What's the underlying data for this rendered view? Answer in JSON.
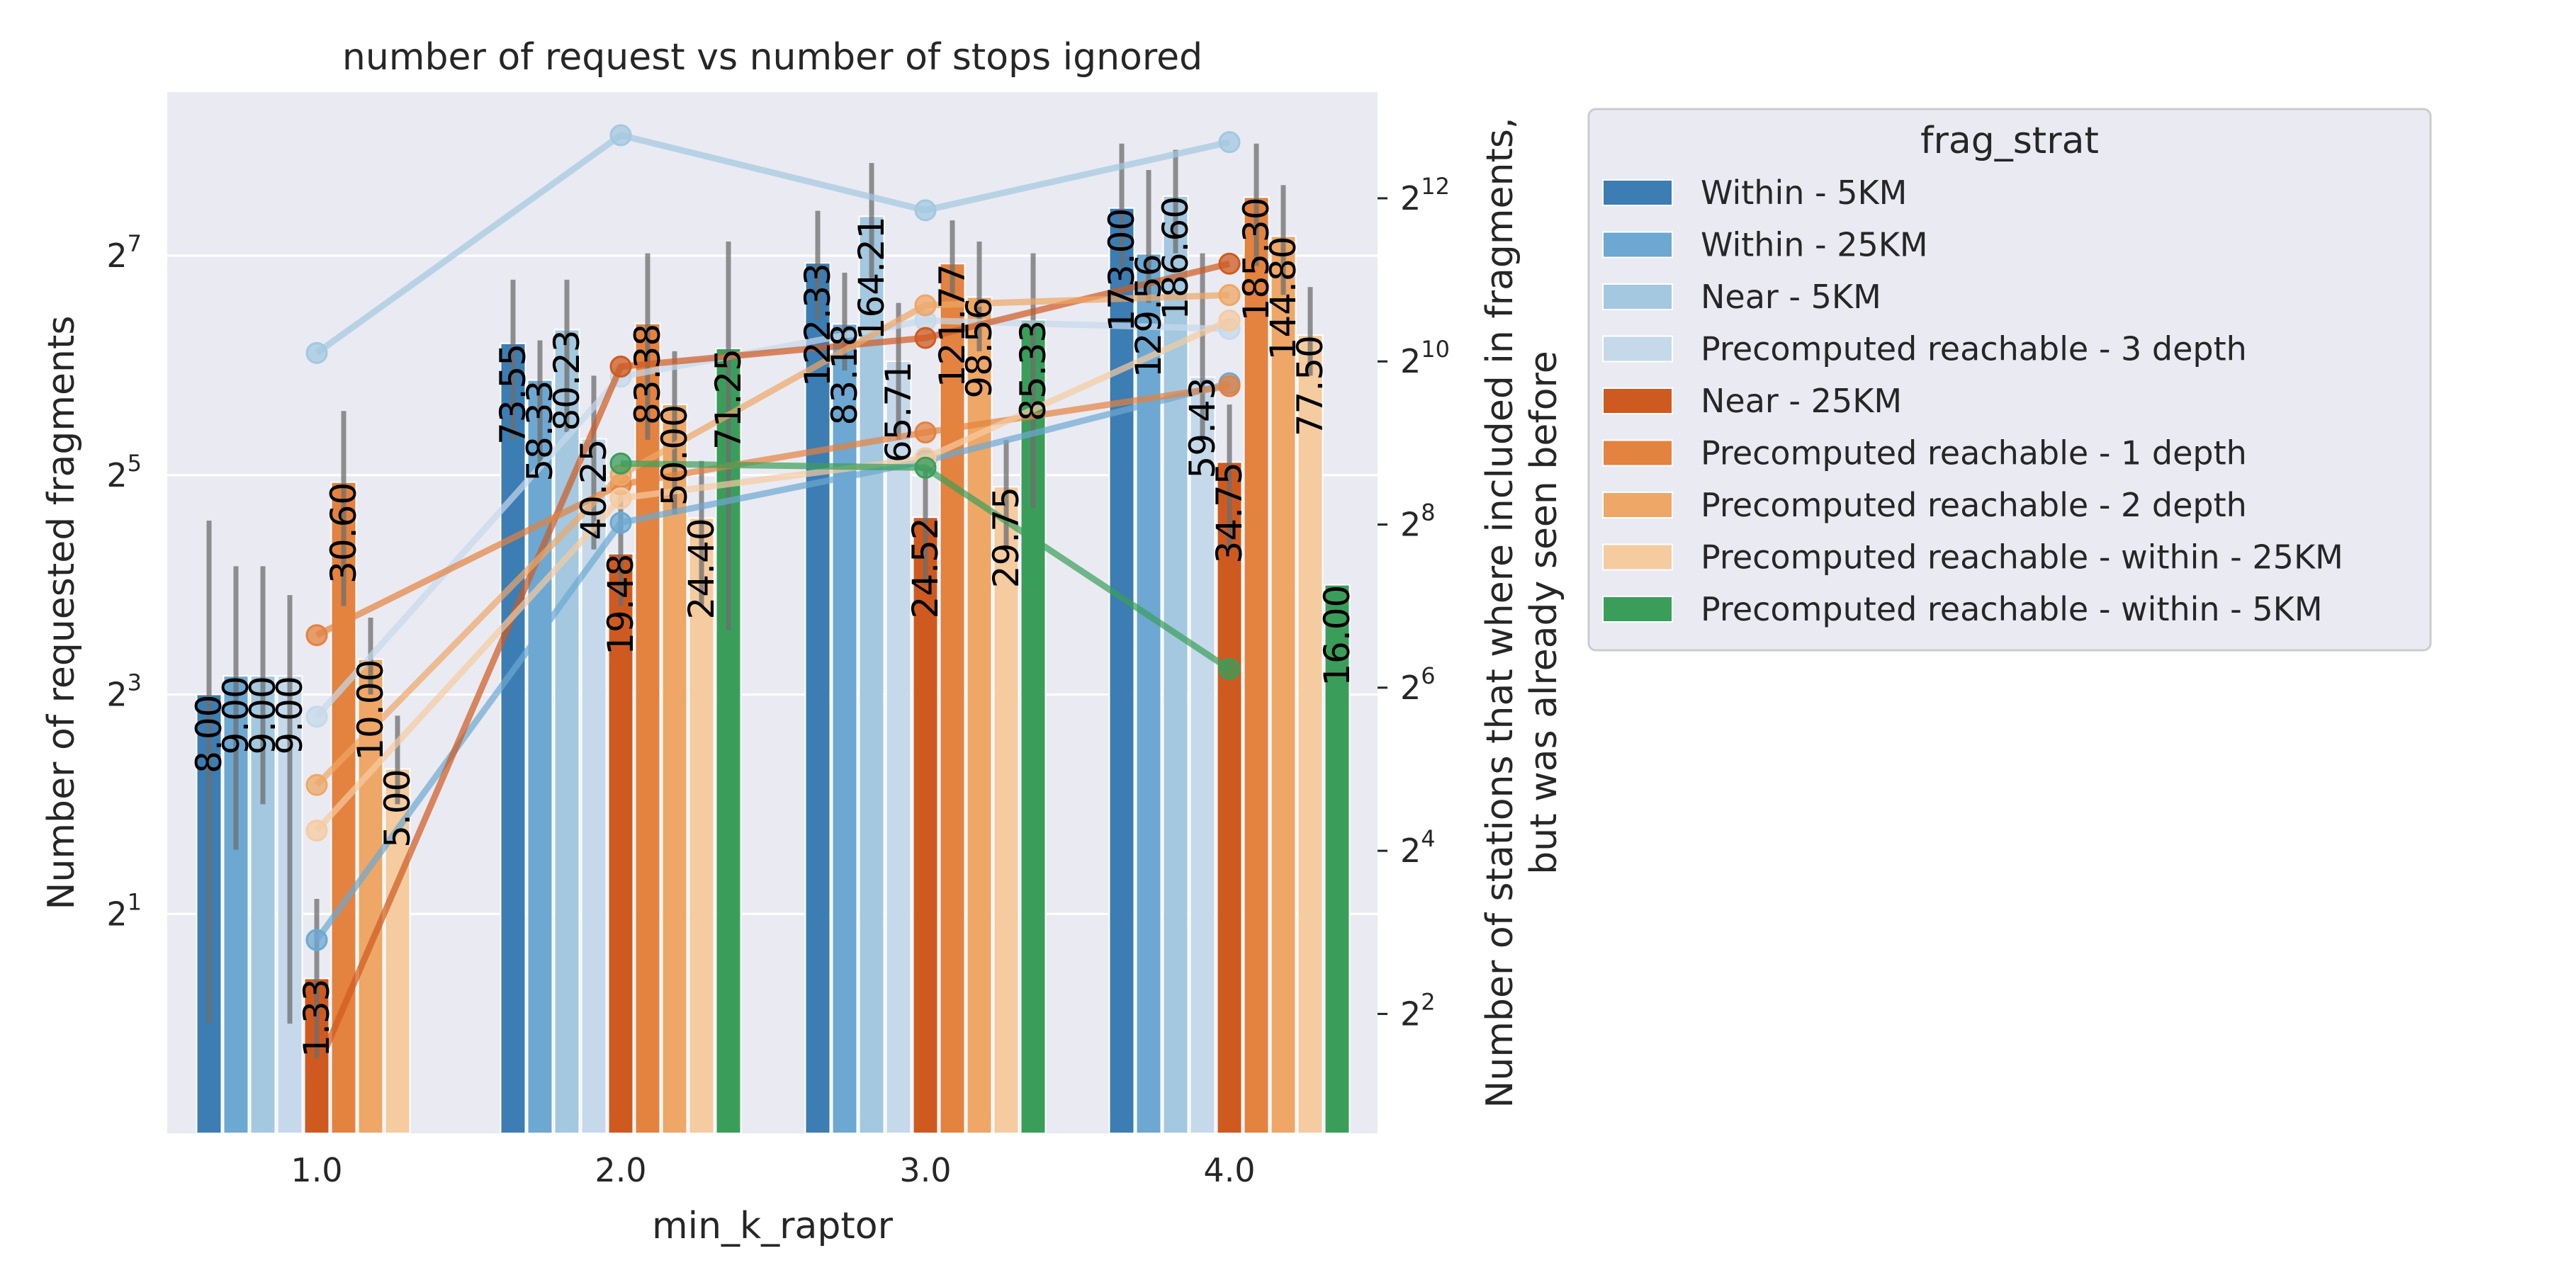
{
  "chart_data": {
    "type": "bar",
    "title": "number of request vs number of stops ignored",
    "xlabel": "min_k_raptor",
    "ylabel": "Number of requested fragments",
    "y2label_line1": "Number of stations that where included in fragments,",
    "y2label_line2": "but was already seen before",
    "categories": [
      "1.0",
      "2.0",
      "3.0",
      "4.0"
    ],
    "yscale": "log2",
    "ylim": [
      0.5,
      360
    ],
    "yticks": [
      {
        "base": "2",
        "exp": "1",
        "value": 2
      },
      {
        "base": "2",
        "exp": "3",
        "value": 8
      },
      {
        "base": "2",
        "exp": "5",
        "value": 32
      },
      {
        "base": "2",
        "exp": "7",
        "value": 128
      }
    ],
    "y2scale": "log2",
    "y2lim": [
      1.45,
      10100
    ],
    "y2ticks": [
      {
        "base": "2",
        "exp": "2",
        "value": 4
      },
      {
        "base": "2",
        "exp": "4",
        "value": 16
      },
      {
        "base": "2",
        "exp": "6",
        "value": 64
      },
      {
        "base": "2",
        "exp": "8",
        "value": 256
      },
      {
        "base": "2",
        "exp": "10",
        "value": 1024
      },
      {
        "base": "2",
        "exp": "12",
        "value": 4096
      }
    ],
    "grid": true,
    "legend": {
      "title": "frag_strat",
      "placement": "outside right"
    },
    "series": [
      {
        "name": "Within - 5KM",
        "color": "#3c7db3",
        "values": [
          8.0,
          73.55,
          122.33,
          173.0
        ],
        "labels": [
          "8.00",
          "73.55",
          "122.33",
          "173.00"
        ],
        "ci": [
          [
            1,
            24
          ],
          [
            40,
            110
          ],
          [
            85,
            170
          ],
          [
            120,
            260
          ]
        ],
        "line_values": [
          null,
          null,
          null,
          null
        ]
      },
      {
        "name": "Within - 25KM",
        "color": "#6ca8d2",
        "values": [
          9.0,
          58.33,
          83.18,
          129.56
        ],
        "labels": [
          "9.00",
          "58.33",
          "83.18",
          "129.56"
        ],
        "ci": [
          [
            3,
            18
          ],
          [
            34,
            75
          ],
          [
            62,
            115
          ],
          [
            95,
            220
          ]
        ],
        "line_values": [
          7.5,
          260,
          440,
          850
        ]
      },
      {
        "name": "Near - 5KM",
        "color": "#a3c8e0",
        "values": [
          9.0,
          80.23,
          164.21,
          186.6
        ],
        "labels": [
          "9.00",
          "80.23",
          "164.21",
          "186.60"
        ],
        "ci": [
          [
            4,
            18
          ],
          [
            42,
            110
          ],
          [
            110,
            230
          ],
          [
            130,
            250
          ]
        ],
        "line_values": [
          1100,
          7000,
          3700,
          6600
        ]
      },
      {
        "name": "Precomputed reachable - 3 depth",
        "color": "#c5d9eb",
        "values": [
          9.0,
          40.25,
          65.71,
          59.43
        ],
        "labels": [
          "9.00",
          "40.25",
          "65.71",
          "59.43"
        ],
        "ci": [
          [
            1,
            15
          ],
          [
            20,
            60
          ],
          [
            40,
            95
          ],
          [
            40,
            130
          ]
        ],
        "line_values": [
          50,
          900,
          1450,
          1350
        ]
      },
      {
        "name": "Near - 25KM",
        "color": "#cf5a20",
        "values": [
          1.33,
          19.48,
          24.52,
          34.75
        ],
        "labels": [
          "1.33",
          "19.48",
          "24.52",
          "34.75"
        ],
        "ci": [
          [
            0.8,
            2.2
          ],
          [
            14,
            28
          ],
          [
            16,
            34
          ],
          [
            20,
            50
          ]
        ],
        "line_values": [
          2.5,
          980,
          1250,
          2350
        ]
      },
      {
        "name": "Precomputed reachable - 1 depth",
        "color": "#e4823f",
        "values": [
          30.6,
          83.38,
          121.77,
          185.3
        ],
        "labels": [
          "30.60",
          "83.38",
          "121.77",
          "185.30"
        ],
        "ci": [
          [
            14,
            48
          ],
          [
            40,
            130
          ],
          [
            100,
            160
          ],
          [
            120,
            260
          ]
        ],
        "line_values": [
          100,
          360,
          560,
          830
        ]
      },
      {
        "name": "Precomputed reachable - 2 depth",
        "color": "#eea766",
        "values": [
          10.0,
          50.0,
          98.56,
          144.8
        ],
        "labels": [
          "10.00",
          "50.00",
          "98.56",
          "144.80"
        ],
        "ci": [
          [
            8,
            13
          ],
          [
            25,
            70
          ],
          [
            70,
            140
          ],
          [
            100,
            200
          ]
        ],
        "line_values": [
          28,
          390,
          1650,
          1800
        ]
      },
      {
        "name": "Precomputed reachable - within - 25KM",
        "color": "#f5cba0",
        "values": [
          5.0,
          24.4,
          29.75,
          77.5
        ],
        "labels": [
          "5.00",
          "24.40",
          "29.75",
          "77.50"
        ],
        "ci": [
          [
            4,
            7
          ],
          [
            14,
            35
          ],
          [
            20,
            40
          ],
          [
            60,
            105
          ]
        ],
        "line_values": [
          19,
          320,
          450,
          1450
        ]
      },
      {
        "name": "Precomputed reachable - within - 5KM",
        "color": "#3a9e5a",
        "values": [
          null,
          71.25,
          85.33,
          16.0
        ],
        "labels": [
          "",
          "71.25",
          "85.33",
          "16.00"
        ],
        "ci": [
          null,
          [
            12,
            140
          ],
          [
            26,
            130
          ],
          null
        ],
        "line_values": [
          null,
          430,
          415,
          75
        ]
      }
    ]
  }
}
